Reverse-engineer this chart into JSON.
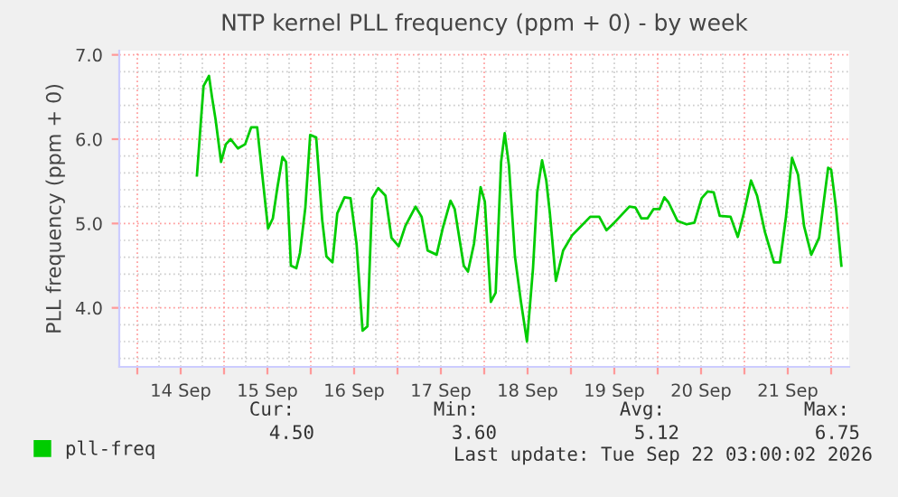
{
  "chart_data": {
    "type": "line",
    "title": "NTP kernel PLL frequency (ppm + 0) - by week",
    "ylabel": "PLL frequency (ppm + 0)",
    "x": [
      "2026-09-14T16:30",
      "2026-09-14T17:30",
      "2026-09-14T18:20",
      "2026-09-14T19:50",
      "2026-09-14T20:40",
      "2026-09-14T21:40",
      "2026-09-14T23:10",
      "2026-09-15T00:30",
      "2026-09-15T01:50",
      "2026-09-15T03:50",
      "2026-09-15T05:50",
      "2026-09-15T07:30",
      "2026-09-15T09:10",
      "2026-09-15T12:10",
      "2026-09-15T13:30",
      "2026-09-15T14:40",
      "2026-09-15T16:10",
      "2026-09-15T17:10",
      "2026-09-15T18:30",
      "2026-09-15T20:00",
      "2026-09-15T21:00",
      "2026-09-15T22:30",
      "2026-09-15T23:50",
      "2026-09-16T01:30",
      "2026-09-16T03:10",
      "2026-09-16T04:20",
      "2026-09-16T06:00",
      "2026-09-16T07:20",
      "2026-09-16T09:20",
      "2026-09-16T11:00",
      "2026-09-16T12:40",
      "2026-09-16T14:20",
      "2026-09-16T15:40",
      "2026-09-16T17:00",
      "2026-09-16T18:40",
      "2026-09-16T20:40",
      "2026-09-16T22:20",
      "2026-09-17T00:20",
      "2026-09-17T02:10",
      "2026-09-17T05:00",
      "2026-09-17T06:40",
      "2026-09-17T08:20",
      "2026-09-17T10:50",
      "2026-09-17T12:30",
      "2026-09-17T14:40",
      "2026-09-17T15:50",
      "2026-09-17T18:20",
      "2026-09-17T19:30",
      "2026-09-17T21:10",
      "2026-09-17T23:00",
      "2026-09-18T00:10",
      "2026-09-18T01:50",
      "2026-09-18T03:10",
      "2026-09-18T04:40",
      "2026-09-18T05:40",
      "2026-09-18T06:50",
      "2026-09-18T08:30",
      "2026-09-18T10:10",
      "2026-09-18T11:50",
      "2026-09-18T13:30",
      "2026-09-18T14:40",
      "2026-09-18T16:00",
      "2026-09-18T17:10",
      "2026-09-18T18:10",
      "2026-09-18T19:50",
      "2026-09-18T21:50",
      "2026-09-19T00:20",
      "2026-09-19T05:20",
      "2026-09-19T07:50",
      "2026-09-19T09:50",
      "2026-09-19T12:00",
      "2026-09-19T16:10",
      "2026-09-19T17:50",
      "2026-09-19T19:30",
      "2026-09-19T21:10",
      "2026-09-19T22:50",
      "2026-09-20T00:30",
      "2026-09-20T01:50",
      "2026-09-20T03:00",
      "2026-09-20T05:30",
      "2026-09-20T08:00",
      "2026-09-20T10:10",
      "2026-09-20T12:10",
      "2026-09-20T13:50",
      "2026-09-20T15:30",
      "2026-09-20T17:10",
      "2026-09-20T20:10",
      "2026-09-20T22:10",
      "2026-09-20T23:50",
      "2026-09-21T01:50",
      "2026-09-21T03:30",
      "2026-09-21T05:40",
      "2026-09-21T08:10",
      "2026-09-21T09:50",
      "2026-09-21T11:30",
      "2026-09-21T13:10",
      "2026-09-21T14:50",
      "2026-09-21T16:30",
      "2026-09-21T18:30",
      "2026-09-21T20:40",
      "2026-09-21T23:10",
      "2026-09-22T00:00",
      "2026-09-22T01:20",
      "2026-09-22T02:50"
    ],
    "series": [
      {
        "name": "pll-freq",
        "color": "#00cc00",
        "values": [
          5.57,
          6.16,
          6.63,
          6.75,
          6.5,
          6.23,
          5.73,
          5.94,
          6.0,
          5.89,
          5.94,
          6.14,
          6.14,
          4.94,
          5.06,
          5.4,
          5.79,
          5.73,
          4.5,
          4.47,
          4.65,
          5.19,
          6.05,
          6.02,
          5.04,
          4.61,
          4.54,
          5.12,
          5.31,
          5.3,
          4.76,
          3.73,
          3.78,
          5.3,
          5.42,
          5.33,
          4.83,
          4.73,
          4.97,
          5.2,
          5.08,
          4.68,
          4.63,
          4.94,
          5.27,
          5.17,
          4.5,
          4.43,
          4.76,
          5.43,
          5.26,
          4.07,
          4.18,
          5.73,
          6.07,
          5.69,
          4.61,
          4.07,
          3.6,
          4.47,
          5.37,
          5.75,
          5.51,
          5.12,
          4.32,
          4.68,
          4.86,
          5.08,
          5.08,
          4.92,
          5.01,
          5.2,
          5.19,
          5.06,
          5.06,
          5.17,
          5.17,
          5.31,
          5.25,
          5.03,
          4.99,
          5.01,
          5.3,
          5.38,
          5.37,
          5.09,
          5.08,
          4.84,
          5.12,
          5.51,
          5.33,
          4.9,
          4.54,
          4.54,
          5.08,
          5.78,
          5.58,
          4.97,
          4.63,
          4.83,
          5.66,
          5.64,
          5.19,
          4.5
        ]
      }
    ],
    "xlim": [
      "2026-09-13T19:00",
      "2026-09-22T05:00"
    ],
    "xticks": [
      {
        "value": "2026-09-14T00:00",
        "label": null
      },
      {
        "value": "2026-09-14T12:00",
        "label": "14 Sep"
      },
      {
        "value": "2026-09-15T00:00",
        "label": null
      },
      {
        "value": "2026-09-15T12:00",
        "label": "15 Sep"
      },
      {
        "value": "2026-09-16T00:00",
        "label": null
      },
      {
        "value": "2026-09-16T12:00",
        "label": "16 Sep"
      },
      {
        "value": "2026-09-17T00:00",
        "label": null
      },
      {
        "value": "2026-09-17T12:00",
        "label": "17 Sep"
      },
      {
        "value": "2026-09-18T00:00",
        "label": null
      },
      {
        "value": "2026-09-18T12:00",
        "label": "18 Sep"
      },
      {
        "value": "2026-09-19T00:00",
        "label": null
      },
      {
        "value": "2026-09-19T12:00",
        "label": "19 Sep"
      },
      {
        "value": "2026-09-20T00:00",
        "label": null
      },
      {
        "value": "2026-09-20T12:00",
        "label": "20 Sep"
      },
      {
        "value": "2026-09-21T00:00",
        "label": null
      },
      {
        "value": "2026-09-21T12:00",
        "label": "21 Sep"
      },
      {
        "value": "2026-09-22T00:00",
        "label": null
      }
    ],
    "ylim": [
      3.3,
      7.05
    ],
    "yticks": [
      {
        "value": 4,
        "label": "4.0"
      },
      {
        "value": 5,
        "label": "5.0"
      },
      {
        "value": 6,
        "label": "6.0"
      },
      {
        "value": 7,
        "label": "7.0"
      }
    ],
    "grid": true,
    "legend": "bottom",
    "line_style": "solid",
    "marker": "none",
    "annotations": [
      "Cur:",
      "Min:",
      "Avg:",
      "Max:",
      "4.50",
      "3.60",
      "5.12",
      "6.75",
      "Last update: Tue Sep 22 03:00:02 2026"
    ]
  }
}
